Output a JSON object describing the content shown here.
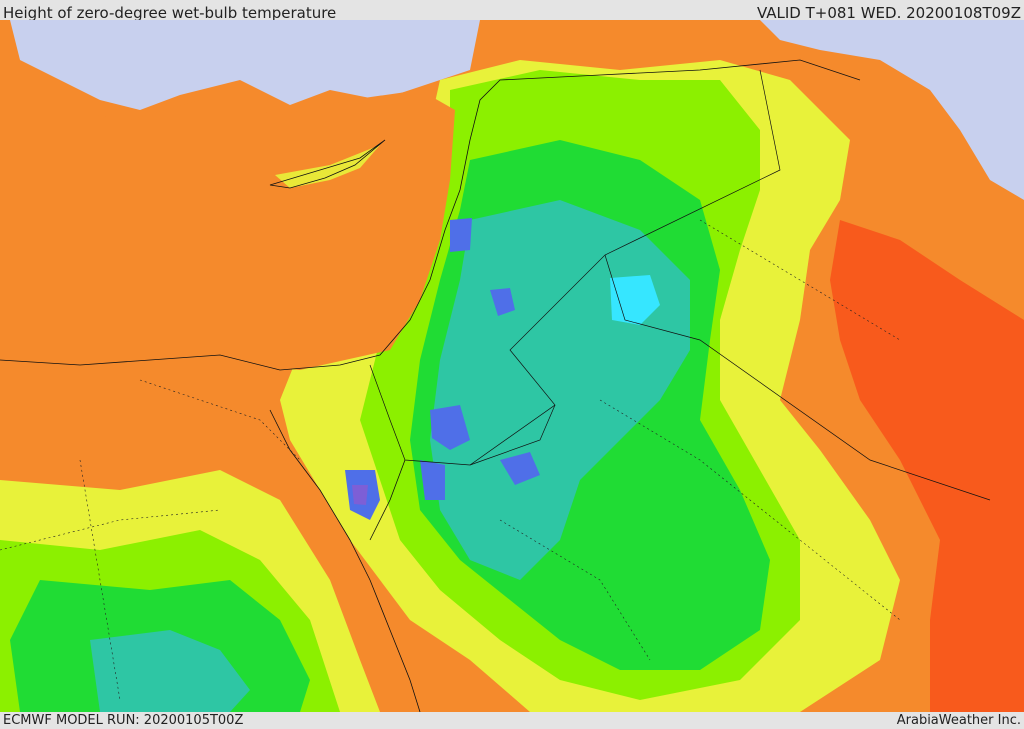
{
  "header": {
    "title": "Height of zero-degree wet-bulb temperature",
    "valid": "VALID T+081 WED. 20200108T09Z"
  },
  "footer": {
    "model_run": "ECMWF MODEL RUN: 20200105T00Z",
    "brand": "ArabiaWeather Inc."
  },
  "map": {
    "field": "height of zero-degree wet-bulb temperature",
    "region": "Eastern Mediterranean, Levant, Egypt, northern Arabia",
    "color_scale": [
      "#c8d0ee",
      "#4f6fe8",
      "#7d5fd6",
      "#36e6ff",
      "#2ec6a4",
      "#20dc34",
      "#8cf000",
      "#e8f23a",
      "#f2b800",
      "#f58a2c",
      "#f85a1c"
    ]
  }
}
